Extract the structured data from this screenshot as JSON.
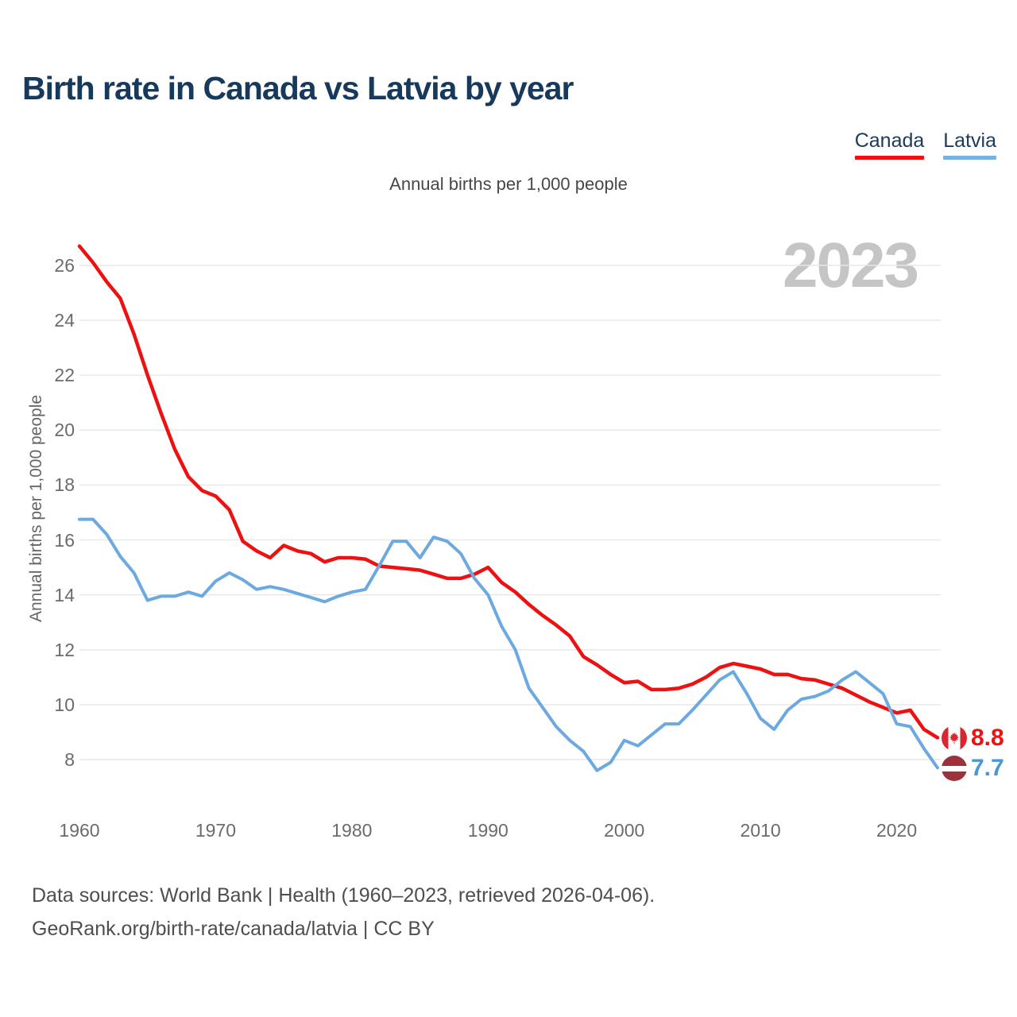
{
  "title": "Birth rate in Canada vs Latvia by year",
  "subtitle": "Annual births per 1,000 people",
  "watermark": "2023",
  "legend": [
    {
      "label": "Canada",
      "color": "#ee1111"
    },
    {
      "label": "Latvia",
      "color": "#74b2e2"
    }
  ],
  "end_labels": [
    {
      "series": "Canada",
      "value": "8.8",
      "flag": "canada-flag",
      "color": "#ee1111"
    },
    {
      "series": "Latvia",
      "value": "7.7",
      "flag": "latvia-flag",
      "color": "#4a96db"
    }
  ],
  "footer": {
    "line1": "Data sources: World Bank | Health (1960–2023, retrieved 2026-04-06).",
    "line2": "GeoRank.org/birth-rate/canada/latvia | CC BY"
  },
  "colors": {
    "canada_line": "#ee1111",
    "latvia_line": "#6ca9e0",
    "title_navy": "#17395c",
    "axis_text_gray": "#6b6b6b",
    "watermark_gray": "#c5c5c5",
    "gridline_gray": "#e7e7e7",
    "canada_flag_red": "#d82730",
    "latvia_flag_carmine": "#9d323c"
  },
  "chart_data": {
    "type": "line",
    "title": "Birth rate in Canada vs Latvia by year",
    "subtitle": "Annual births per 1,000 people",
    "xlabel": "",
    "ylabel": "Annual births per 1,000 people",
    "grid": true,
    "legend_position": "top-right",
    "ylim": [
      8,
      26
    ],
    "yticks": [
      8,
      10,
      12,
      14,
      16,
      18,
      20,
      22,
      24,
      26
    ],
    "xticks": [
      1960,
      1970,
      1980,
      1990,
      2000,
      2010,
      2020
    ],
    "x": [
      1960,
      1961,
      1962,
      1963,
      1964,
      1965,
      1966,
      1967,
      1968,
      1969,
      1970,
      1971,
      1972,
      1973,
      1974,
      1975,
      1976,
      1977,
      1978,
      1979,
      1980,
      1981,
      1982,
      1983,
      1984,
      1985,
      1986,
      1987,
      1988,
      1989,
      1990,
      1991,
      1992,
      1993,
      1994,
      1995,
      1996,
      1997,
      1998,
      1999,
      2000,
      2001,
      2002,
      2003,
      2004,
      2005,
      2006,
      2007,
      2008,
      2009,
      2010,
      2011,
      2012,
      2013,
      2014,
      2015,
      2016,
      2017,
      2018,
      2019,
      2020,
      2021,
      2022,
      2023
    ],
    "series": [
      {
        "name": "Canada",
        "color": "#ee1111",
        "end_value": 8.8,
        "values": [
          26.7,
          26.1,
          25.4,
          24.8,
          23.5,
          22.0,
          20.6,
          19.3,
          18.3,
          17.8,
          17.6,
          17.1,
          15.95,
          15.6,
          15.35,
          15.8,
          15.6,
          15.5,
          15.2,
          15.35,
          15.35,
          15.3,
          15.05,
          15.0,
          14.95,
          14.9,
          14.75,
          14.6,
          14.6,
          14.75,
          15.0,
          14.45,
          14.1,
          13.65,
          13.25,
          12.9,
          12.5,
          11.75,
          11.45,
          11.1,
          10.8,
          10.85,
          10.55,
          10.55,
          10.6,
          10.75,
          11.0,
          11.35,
          11.5,
          11.4,
          11.3,
          11.1,
          11.1,
          10.95,
          10.9,
          10.75,
          10.6,
          10.35,
          10.1,
          9.9,
          9.7,
          9.8,
          9.1,
          8.8
        ]
      },
      {
        "name": "Latvia",
        "color": "#6ca9e0",
        "end_value": 7.7,
        "values": [
          16.75,
          16.75,
          16.2,
          15.4,
          14.8,
          13.8,
          13.95,
          13.95,
          14.1,
          13.95,
          14.5,
          14.8,
          14.55,
          14.2,
          14.3,
          14.2,
          14.05,
          13.9,
          13.75,
          13.95,
          14.1,
          14.2,
          15.05,
          15.95,
          15.95,
          15.35,
          16.1,
          15.95,
          15.5,
          14.6,
          14.0,
          12.85,
          12.0,
          10.6,
          9.9,
          9.2,
          8.7,
          8.3,
          7.6,
          7.9,
          8.7,
          8.5,
          8.9,
          9.3,
          9.3,
          9.8,
          10.35,
          10.9,
          11.2,
          10.4,
          9.5,
          9.1,
          9.8,
          10.2,
          10.3,
          10.5,
          10.9,
          11.2,
          10.8,
          10.4,
          9.3,
          9.2,
          8.4,
          7.7
        ]
      }
    ]
  }
}
